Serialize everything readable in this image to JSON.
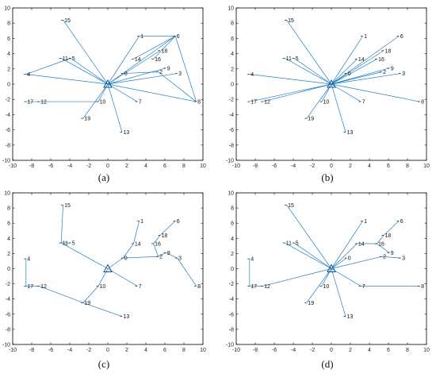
{
  "colors": {
    "edge": "#1f7fc4",
    "axis": "#000000",
    "text": "#111111"
  },
  "chart_data": [
    {
      "type": "scatter",
      "caption": "(a)",
      "xlim": [
        -10,
        10
      ],
      "ylim": [
        -10,
        10
      ],
      "xticks": [
        -10,
        -8,
        -6,
        -4,
        -2,
        0,
        2,
        4,
        6,
        8,
        10
      ],
      "yticks": [
        10,
        8,
        6,
        4,
        2,
        0,
        -2,
        -4,
        -6,
        -8,
        -10
      ],
      "nodes": [
        {
          "id": "0",
          "x": 1.6,
          "y": 1.4
        },
        {
          "id": "1",
          "x": 3.3,
          "y": 6.3
        },
        {
          "id": "2",
          "x": 5.3,
          "y": 1.6
        },
        {
          "id": "3",
          "x": 7.3,
          "y": 1.4
        },
        {
          "id": "4",
          "x": -8.6,
          "y": 1.3
        },
        {
          "id": "5",
          "x": -3.9,
          "y": 3.4
        },
        {
          "id": "6",
          "x": 7.1,
          "y": 6.3
        },
        {
          "id": "7",
          "x": 3.1,
          "y": -2.3
        },
        {
          "id": "8",
          "x": 9.3,
          "y": -2.3
        },
        {
          "id": "9",
          "x": 6.1,
          "y": 2.1
        },
        {
          "id": "10",
          "x": -1.0,
          "y": -2.3
        },
        {
          "id": "11",
          "x": -4.9,
          "y": 3.4
        },
        {
          "id": "12",
          "x": -7.2,
          "y": -2.3
        },
        {
          "id": "13",
          "x": 1.5,
          "y": -6.3
        },
        {
          "id": "14",
          "x": 2.7,
          "y": 3.3
        },
        {
          "id": "15",
          "x": -4.7,
          "y": 8.4
        },
        {
          "id": "16",
          "x": 4.8,
          "y": 3.3
        },
        {
          "id": "17",
          "x": -8.6,
          "y": -2.3
        },
        {
          "id": "18",
          "x": 5.5,
          "y": 4.4
        },
        {
          "id": "19",
          "x": -2.6,
          "y": -4.5
        }
      ],
      "edges": [
        [
          "center",
          "1"
        ],
        [
          "center",
          "6"
        ],
        [
          "center",
          "8"
        ],
        [
          "center",
          "7"
        ],
        [
          "center",
          "3"
        ],
        [
          "center",
          "18"
        ],
        [
          "center",
          "9"
        ],
        [
          "center",
          "13"
        ],
        [
          "center",
          "19"
        ],
        [
          "center",
          "4"
        ],
        [
          "center",
          "15"
        ],
        [
          "center",
          "5"
        ],
        [
          "center",
          "11"
        ],
        [
          "center",
          "10"
        ],
        [
          "4",
          "5"
        ],
        [
          "1",
          "6"
        ],
        [
          "6",
          "8"
        ],
        [
          "2",
          "8"
        ],
        [
          "14",
          "6"
        ],
        [
          "16",
          "6"
        ],
        [
          "10",
          "17"
        ],
        [
          "0",
          "2"
        ]
      ]
    },
    {
      "type": "scatter",
      "caption": "(b)",
      "xlim": [
        -10,
        10
      ],
      "ylim": [
        -10,
        10
      ],
      "xticks": [
        -10,
        -8,
        -6,
        -4,
        -2,
        0,
        2,
        4,
        6,
        8,
        10
      ],
      "yticks": [
        10,
        8,
        6,
        4,
        2,
        0,
        -2,
        -4,
        -6,
        -8,
        -10
      ],
      "nodes": [
        {
          "id": "0",
          "x": 1.6,
          "y": 1.4
        },
        {
          "id": "1",
          "x": 3.3,
          "y": 6.3
        },
        {
          "id": "2",
          "x": 5.3,
          "y": 1.6
        },
        {
          "id": "3",
          "x": 7.3,
          "y": 1.4
        },
        {
          "id": "4",
          "x": -8.6,
          "y": 1.3
        },
        {
          "id": "5",
          "x": -3.9,
          "y": 3.4
        },
        {
          "id": "6",
          "x": 7.1,
          "y": 6.3
        },
        {
          "id": "7",
          "x": 3.1,
          "y": -2.3
        },
        {
          "id": "8",
          "x": 9.3,
          "y": -2.3
        },
        {
          "id": "9",
          "x": 6.1,
          "y": 2.1
        },
        {
          "id": "10",
          "x": -1.0,
          "y": -2.3
        },
        {
          "id": "11",
          "x": -4.9,
          "y": 3.4
        },
        {
          "id": "12",
          "x": -7.2,
          "y": -2.3
        },
        {
          "id": "13",
          "x": 1.5,
          "y": -6.3
        },
        {
          "id": "14",
          "x": 2.7,
          "y": 3.3
        },
        {
          "id": "15",
          "x": -4.7,
          "y": 8.4
        },
        {
          "id": "16",
          "x": 4.8,
          "y": 3.3
        },
        {
          "id": "17",
          "x": -8.6,
          "y": -2.3
        },
        {
          "id": "18",
          "x": 5.5,
          "y": 4.4
        },
        {
          "id": "19",
          "x": -2.6,
          "y": -4.5
        }
      ],
      "edges": [
        [
          "center",
          "0"
        ],
        [
          "center",
          "1"
        ],
        [
          "center",
          "2"
        ],
        [
          "center",
          "3"
        ],
        [
          "center",
          "4"
        ],
        [
          "center",
          "5"
        ],
        [
          "center",
          "6"
        ],
        [
          "center",
          "7"
        ],
        [
          "center",
          "8"
        ],
        [
          "center",
          "9"
        ],
        [
          "center",
          "10"
        ],
        [
          "center",
          "11"
        ],
        [
          "center",
          "12"
        ],
        [
          "center",
          "13"
        ],
        [
          "center",
          "14"
        ],
        [
          "center",
          "15"
        ],
        [
          "center",
          "16"
        ],
        [
          "center",
          "17"
        ],
        [
          "center",
          "18"
        ],
        [
          "center",
          "19"
        ]
      ]
    },
    {
      "type": "scatter",
      "caption": "(c)",
      "xlim": [
        -10,
        10
      ],
      "ylim": [
        -10,
        10
      ],
      "xticks": [
        -10,
        -8,
        -6,
        -4,
        -2,
        0,
        2,
        4,
        6,
        8,
        10
      ],
      "yticks": [
        10,
        8,
        6,
        4,
        2,
        0,
        -2,
        -4,
        -6,
        -8,
        -10
      ],
      "nodes": [
        {
          "id": "0",
          "x": 1.6,
          "y": 1.4
        },
        {
          "id": "1",
          "x": 3.3,
          "y": 6.3
        },
        {
          "id": "2",
          "x": 5.3,
          "y": 1.6
        },
        {
          "id": "3",
          "x": 7.3,
          "y": 1.4
        },
        {
          "id": "4",
          "x": -8.6,
          "y": 1.3
        },
        {
          "id": "5",
          "x": -3.9,
          "y": 3.4
        },
        {
          "id": "6",
          "x": 7.1,
          "y": 6.3
        },
        {
          "id": "7",
          "x": 3.1,
          "y": -2.3
        },
        {
          "id": "8",
          "x": 9.3,
          "y": -2.3
        },
        {
          "id": "9",
          "x": 6.1,
          "y": 2.1
        },
        {
          "id": "10",
          "x": -1.0,
          "y": -2.3
        },
        {
          "id": "11",
          "x": -4.9,
          "y": 3.4
        },
        {
          "id": "12",
          "x": -7.2,
          "y": -2.3
        },
        {
          "id": "13",
          "x": 1.5,
          "y": -6.3
        },
        {
          "id": "14",
          "x": 2.7,
          "y": 3.3
        },
        {
          "id": "15",
          "x": -4.7,
          "y": 8.4
        },
        {
          "id": "16",
          "x": 4.8,
          "y": 3.3
        },
        {
          "id": "17",
          "x": -8.6,
          "y": -2.3
        },
        {
          "id": "18",
          "x": 5.5,
          "y": 4.4
        },
        {
          "id": "19",
          "x": -2.6,
          "y": -4.5
        }
      ],
      "edges": [
        [
          "center",
          "0"
        ],
        [
          "0",
          "14"
        ],
        [
          "14",
          "1"
        ],
        [
          "0",
          "2"
        ],
        [
          "2",
          "9"
        ],
        [
          "9",
          "3"
        ],
        [
          "3",
          "8"
        ],
        [
          "2",
          "16"
        ],
        [
          "16",
          "18"
        ],
        [
          "18",
          "6"
        ],
        [
          "center",
          "7"
        ],
        [
          "center",
          "10"
        ],
        [
          "10",
          "19"
        ],
        [
          "19",
          "13"
        ],
        [
          "19",
          "12"
        ],
        [
          "12",
          "17"
        ],
        [
          "17",
          "4"
        ],
        [
          "center",
          "11"
        ],
        [
          "11",
          "5"
        ],
        [
          "11",
          "15"
        ]
      ]
    },
    {
      "type": "scatter",
      "caption": "(d)",
      "xlim": [
        -10,
        10
      ],
      "ylim": [
        -10,
        10
      ],
      "xticks": [
        -10,
        -8,
        -6,
        -4,
        -2,
        0,
        2,
        4,
        6,
        8,
        10
      ],
      "yticks": [
        10,
        8,
        6,
        4,
        2,
        0,
        -2,
        -4,
        -6,
        -8,
        -10
      ],
      "nodes": [
        {
          "id": "0",
          "x": 1.6,
          "y": 1.4
        },
        {
          "id": "1",
          "x": 3.3,
          "y": 6.3
        },
        {
          "id": "2",
          "x": 5.3,
          "y": 1.6
        },
        {
          "id": "3",
          "x": 7.3,
          "y": 1.4
        },
        {
          "id": "4",
          "x": -8.6,
          "y": 1.3
        },
        {
          "id": "5",
          "x": -3.9,
          "y": 3.4
        },
        {
          "id": "6",
          "x": 7.1,
          "y": 6.3
        },
        {
          "id": "7",
          "x": 3.1,
          "y": -2.3
        },
        {
          "id": "8",
          "x": 9.3,
          "y": -2.3
        },
        {
          "id": "9",
          "x": 6.1,
          "y": 2.1
        },
        {
          "id": "10",
          "x": -1.0,
          "y": -2.3
        },
        {
          "id": "11",
          "x": -4.9,
          "y": 3.4
        },
        {
          "id": "12",
          "x": -7.2,
          "y": -2.3
        },
        {
          "id": "13",
          "x": 1.5,
          "y": -6.3
        },
        {
          "id": "14",
          "x": 2.7,
          "y": 3.3
        },
        {
          "id": "15",
          "x": -4.7,
          "y": 8.4
        },
        {
          "id": "16",
          "x": 4.8,
          "y": 3.3
        },
        {
          "id": "17",
          "x": -8.6,
          "y": -2.3
        },
        {
          "id": "18",
          "x": 5.5,
          "y": 4.4
        },
        {
          "id": "19",
          "x": -2.6,
          "y": -4.5
        }
      ],
      "edges": [
        [
          "center",
          "15"
        ],
        [
          "center",
          "5"
        ],
        [
          "center",
          "11"
        ],
        [
          "center",
          "0"
        ],
        [
          "center",
          "2"
        ],
        [
          "2",
          "3"
        ],
        [
          "center",
          "14"
        ],
        [
          "14",
          "16"
        ],
        [
          "16",
          "18"
        ],
        [
          "18",
          "6"
        ],
        [
          "16",
          "9"
        ],
        [
          "center",
          "1"
        ],
        [
          "center",
          "7"
        ],
        [
          "7",
          "8"
        ],
        [
          "center",
          "13"
        ],
        [
          "center",
          "10"
        ],
        [
          "center",
          "19"
        ],
        [
          "center",
          "12"
        ],
        [
          "12",
          "17"
        ],
        [
          "17",
          "4"
        ]
      ]
    }
  ]
}
